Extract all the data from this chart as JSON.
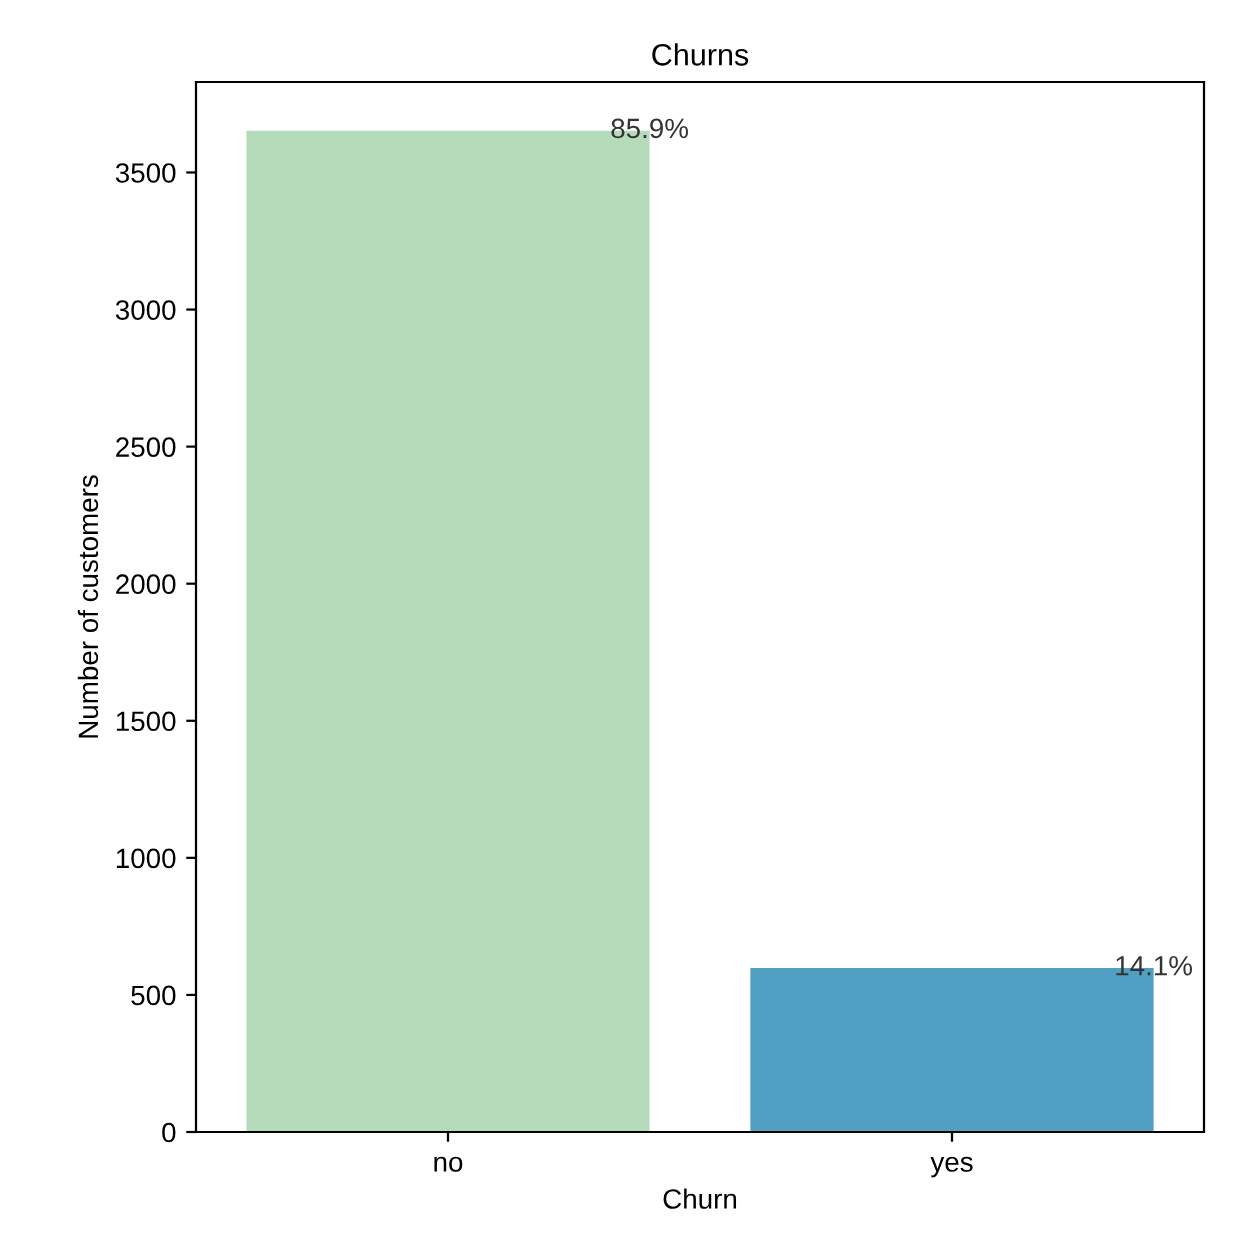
{
  "chart_data": {
    "type": "bar",
    "title": "Churns",
    "xlabel": "Churn",
    "ylabel": "Number of customers",
    "categories": [
      "no",
      "yes"
    ],
    "values": [
      3652,
      598
    ],
    "colors": [
      "#b5dbba",
      "#519fc2"
    ],
    "annotations": [
      "85.9%",
      "14.1%"
    ],
    "ylim": [
      0,
      3830
    ],
    "yticks": [
      0,
      500,
      1000,
      1500,
      2000,
      2500,
      3000,
      3500
    ],
    "grid": false,
    "legend": false
  }
}
